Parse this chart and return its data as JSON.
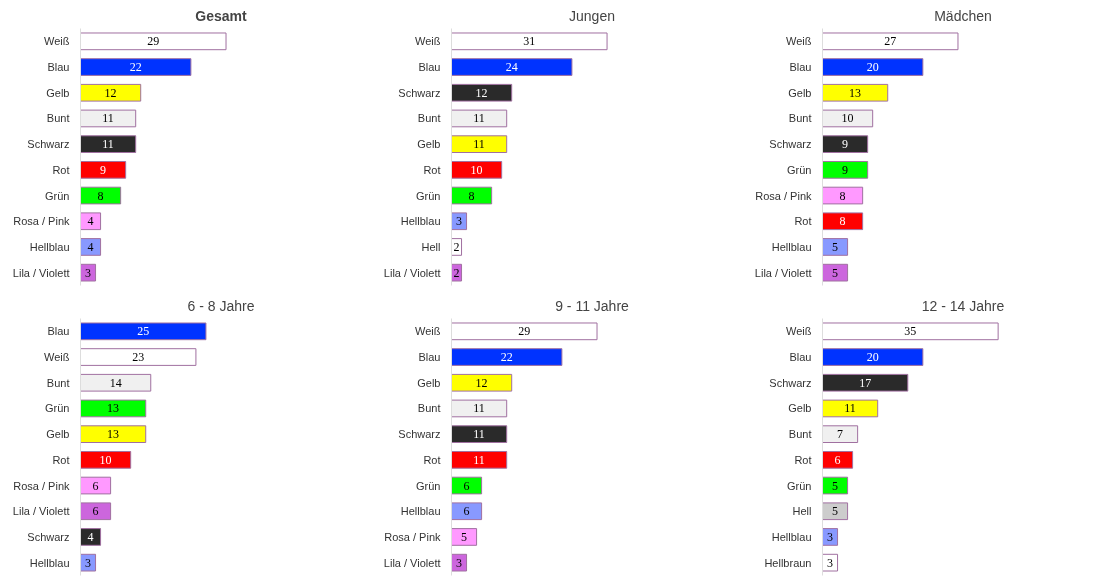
{
  "chart_data": [
    {
      "type": "bar",
      "orientation": "horizontal",
      "data_labels": true,
      "title": "Gesamt",
      "categories": [
        "Weiß",
        "Blau",
        "Gelb",
        "Bunt",
        "Schwarz",
        "Rot",
        "Grün",
        "Rosa / Pink",
        "Hellblau",
        "Lila / Violett"
      ],
      "values": [
        29,
        22,
        12,
        11,
        11,
        9,
        8,
        4,
        4,
        3
      ],
      "colors": [
        "#ffffff",
        "#0033ff",
        "#ffff00",
        "#f0f0f0",
        "#2a2a2a",
        "#ff0000",
        "#00ff00",
        "#ff99ff",
        "#8899ff",
        "#cc66dd"
      ]
    },
    {
      "type": "bar",
      "orientation": "horizontal",
      "data_labels": true,
      "title": "Jungen",
      "categories": [
        "Weiß",
        "Blau",
        "Schwarz",
        "Bunt",
        "Gelb",
        "Rot",
        "Grün",
        "Hellblau",
        "Hell",
        "Lila / Violett"
      ],
      "values": [
        31,
        24,
        12,
        11,
        11,
        10,
        8,
        3,
        2,
        2
      ],
      "colors": [
        "#ffffff",
        "#0033ff",
        "#2a2a2a",
        "#f0f0f0",
        "#ffff00",
        "#ff0000",
        "#00ff00",
        "#8899ff",
        "#ffffff",
        "#cc66dd"
      ]
    },
    {
      "type": "bar",
      "orientation": "horizontal",
      "data_labels": true,
      "title": "Mädchen",
      "categories": [
        "Weiß",
        "Blau",
        "Gelb",
        "Bunt",
        "Schwarz",
        "Grün",
        "Rosa / Pink",
        "Rot",
        "Hellblau",
        "Lila / Violett"
      ],
      "values": [
        27,
        20,
        13,
        10,
        9,
        9,
        8,
        8,
        5,
        5
      ],
      "colors": [
        "#ffffff",
        "#0033ff",
        "#ffff00",
        "#f0f0f0",
        "#2a2a2a",
        "#00ff00",
        "#ff99ff",
        "#ff0000",
        "#8899ff",
        "#cc66dd"
      ]
    },
    {
      "type": "bar",
      "orientation": "horizontal",
      "data_labels": true,
      "title": "6 - 8 Jahre",
      "categories": [
        "Blau",
        "Weiß",
        "Bunt",
        "Grün",
        "Gelb",
        "Rot",
        "Rosa / Pink",
        "Lila / Violett",
        "Schwarz",
        "Hellblau"
      ],
      "values": [
        25,
        23,
        14,
        13,
        13,
        10,
        6,
        6,
        4,
        3
      ],
      "colors": [
        "#0033ff",
        "#ffffff",
        "#f0f0f0",
        "#00ff00",
        "#ffff00",
        "#ff0000",
        "#ff99ff",
        "#cc66dd",
        "#2a2a2a",
        "#8899ff"
      ]
    },
    {
      "type": "bar",
      "orientation": "horizontal",
      "data_labels": true,
      "title": "9 - 11 Jahre",
      "categories": [
        "Weiß",
        "Blau",
        "Gelb",
        "Bunt",
        "Schwarz",
        "Rot",
        "Grün",
        "Hellblau",
        "Rosa / Pink",
        "Lila / Violett"
      ],
      "values": [
        29,
        22,
        12,
        11,
        11,
        11,
        6,
        6,
        5,
        3
      ],
      "colors": [
        "#ffffff",
        "#0033ff",
        "#ffff00",
        "#f0f0f0",
        "#2a2a2a",
        "#ff0000",
        "#00ff00",
        "#8899ff",
        "#ff99ff",
        "#cc66dd"
      ]
    },
    {
      "type": "bar",
      "orientation": "horizontal",
      "data_labels": true,
      "title": "12 - 14 Jahre",
      "categories": [
        "Weiß",
        "Blau",
        "Schwarz",
        "Gelb",
        "Bunt",
        "Rot",
        "Grün",
        "Hell",
        "Hellblau",
        "Hellbraun"
      ],
      "values": [
        35,
        20,
        17,
        11,
        7,
        6,
        5,
        5,
        3,
        3
      ],
      "colors": [
        "#ffffff",
        "#0033ff",
        "#2a2a2a",
        "#ffff00",
        "#f0f0f0",
        "#ff0000",
        "#00ff00",
        "#cccccc",
        "#8899ff",
        "#ffffff"
      ]
    }
  ]
}
